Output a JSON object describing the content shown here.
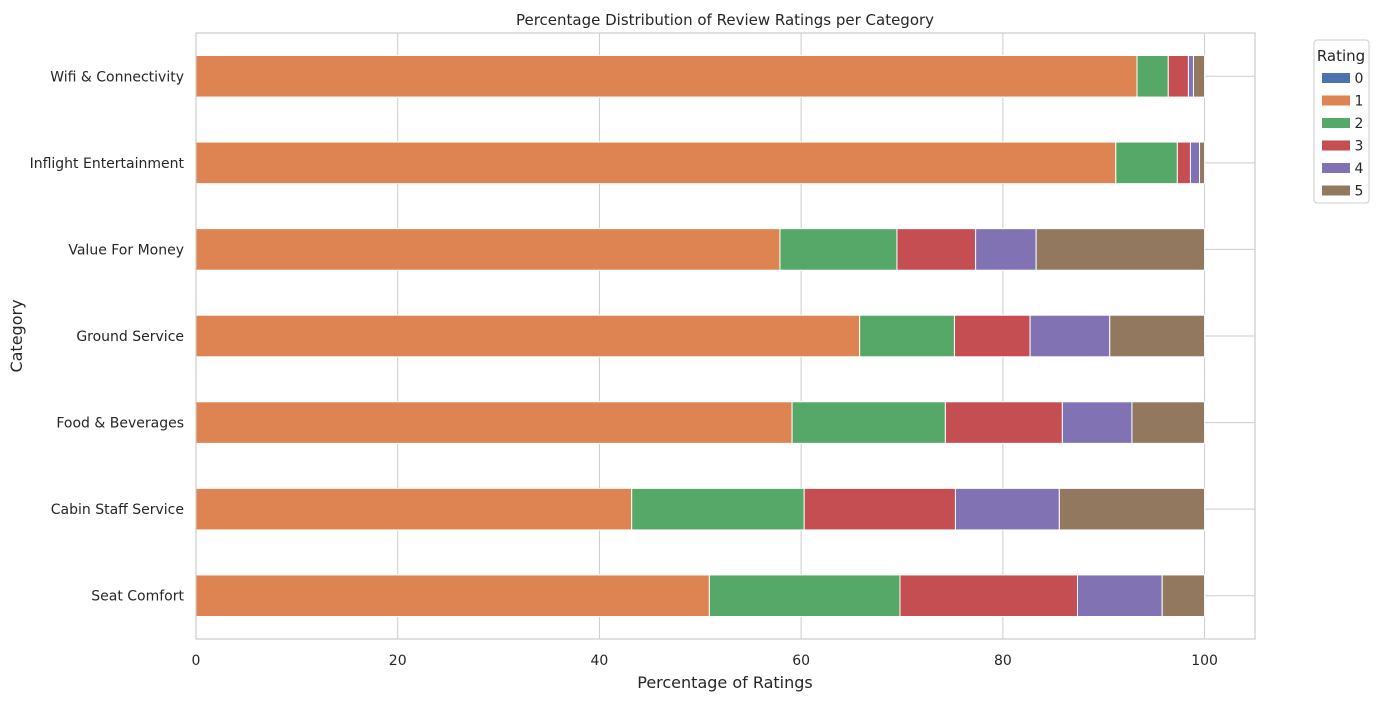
{
  "chart_data": {
    "type": "bar",
    "orientation": "horizontal",
    "stacked": true,
    "title": "Percentage Distribution of Review Ratings per Category",
    "xlabel": "Percentage of Ratings",
    "ylabel": "Category",
    "xlim": [
      0,
      105
    ],
    "xticks": [
      "0",
      "20",
      "40",
      "60",
      "80",
      "100"
    ],
    "grid": true,
    "legend": {
      "title": "Rating",
      "placement": "outside-top-right"
    },
    "categories": [
      "Wifi & Connectivity",
      "Inflight Entertainment",
      "Value For Money",
      "Ground Service",
      "Food & Beverages",
      "Cabin Staff Service",
      "Seat Comfort"
    ],
    "series": [
      {
        "name": "0",
        "color": "#4c72b0",
        "values": [
          0.0,
          0.0,
          0.0,
          0.0,
          0.0,
          0.0,
          0.0
        ]
      },
      {
        "name": "1",
        "color": "#dd8452",
        "values": [
          93.3,
          91.2,
          57.9,
          65.8,
          59.1,
          43.2,
          50.9
        ]
      },
      {
        "name": "2",
        "color": "#55a868",
        "values": [
          3.1,
          6.1,
          11.6,
          9.4,
          15.2,
          17.1,
          18.9
        ]
      },
      {
        "name": "3",
        "color": "#c44e52",
        "values": [
          2.0,
          1.3,
          7.8,
          7.5,
          11.6,
          15.0,
          17.6
        ]
      },
      {
        "name": "4",
        "color": "#8172b3",
        "values": [
          0.5,
          0.9,
          6.0,
          7.9,
          6.9,
          10.3,
          8.4
        ]
      },
      {
        "name": "5",
        "color": "#937860",
        "values": [
          1.1,
          0.5,
          16.7,
          9.4,
          7.2,
          14.4,
          4.2
        ]
      }
    ]
  }
}
